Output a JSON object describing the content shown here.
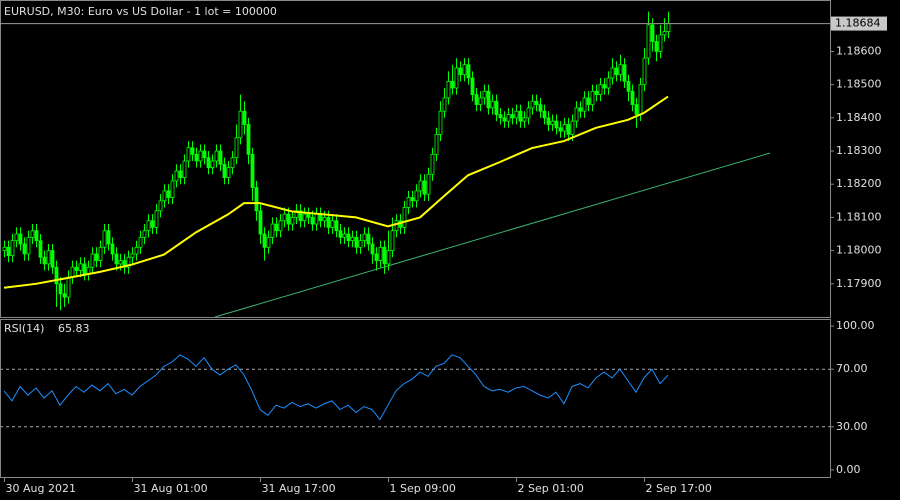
{
  "chart_data": [
    {
      "type": "candlestick",
      "title": "EURUSD, M30:  Euro vs US Dollar - 1 lot = 100000",
      "open": [
        1.18,
        1.1801,
        1.17985,
        1.1803,
        1.1805,
        1.1802,
        1.1799,
        1.1804,
        1.1806,
        1.1803,
        1.1798,
        1.1796,
        1.18,
        1.1795,
        1.179,
        1.1787,
        1.1786,
        1.1792,
        1.1795,
        1.1794,
        1.1796,
        1.1793,
        1.1795,
        1.1799,
        1.1797,
        1.1801,
        1.1806,
        1.1802,
        1.1799,
        1.1796,
        1.1797,
        1.1795,
        1.1798,
        1.1799,
        1.1801,
        1.1804,
        1.1806,
        1.1809,
        1.1807,
        1.1812,
        1.1815,
        1.1818,
        1.1816,
        1.1821,
        1.1824,
        1.1822,
        1.1827,
        1.1831,
        1.1829,
        1.1827,
        1.183,
        1.1828,
        1.1825,
        1.1827,
        1.183,
        1.1826,
        1.1822,
        1.1825,
        1.1828,
        1.1834,
        1.1842,
        1.1838,
        1.1829,
        1.1819,
        1.1812,
        1.1805,
        1.1801,
        1.1804,
        1.1808,
        1.1806,
        1.1809,
        1.1811,
        1.1808,
        1.181,
        1.1812,
        1.1809,
        1.1811,
        1.181,
        1.1808,
        1.1811,
        1.1809,
        1.181,
        1.1807,
        1.1809,
        1.1806,
        1.1804,
        1.1805,
        1.1803,
        1.1804,
        1.1801,
        1.1803,
        1.1805,
        1.1802,
        1.1799,
        1.1797,
        1.1801,
        1.1796,
        1.18,
        1.1806,
        1.1809,
        1.1807,
        1.1813,
        1.1816,
        1.1815,
        1.1818,
        1.1821,
        1.1817,
        1.1823,
        1.1829,
        1.1835,
        1.1842,
        1.1846,
        1.1851,
        1.1849,
        1.1855,
        1.1853,
        1.1856,
        1.1852,
        1.1847,
        1.1844,
        1.1846,
        1.1848,
        1.1843,
        1.1845,
        1.1841,
        1.184,
        1.1839,
        1.1841,
        1.184,
        1.1842,
        1.1839,
        1.184,
        1.1843,
        1.1845,
        1.1844,
        1.1842,
        1.184,
        1.1838,
        1.1839,
        1.1837,
        1.1836,
        1.1838,
        1.1835,
        1.1839,
        1.1843,
        1.1842,
        1.1846,
        1.1844,
        1.1848,
        1.1847,
        1.185,
        1.1849,
        1.1852,
        1.1855,
        1.1853,
        1.1856,
        1.1851,
        1.1848,
        1.1844,
        1.1841,
        1.185,
        1.1858,
        1.1868,
        1.1863,
        1.186,
        1.1865,
        1.1866
      ],
      "high": [
        1.1803,
        1.1803,
        1.1805,
        1.1807,
        1.1807,
        1.1804,
        1.1806,
        1.1808,
        1.1808,
        1.1805,
        1.18,
        1.1802,
        1.1802,
        1.1797,
        1.1792,
        1.179,
        1.1794,
        1.1797,
        1.1797,
        1.1798,
        1.1798,
        1.1797,
        1.1801,
        1.1801,
        1.1803,
        1.1808,
        1.1808,
        1.1804,
        1.1801,
        1.1799,
        1.1799,
        1.18,
        1.1801,
        1.1803,
        1.1806,
        1.1808,
        1.1811,
        1.1811,
        1.1814,
        1.1817,
        1.182,
        1.182,
        1.1823,
        1.1826,
        1.1826,
        1.1829,
        1.1833,
        1.1833,
        1.1831,
        1.1832,
        1.1832,
        1.183,
        1.1829,
        1.1832,
        1.1832,
        1.1828,
        1.1827,
        1.183,
        1.1838,
        1.1847,
        1.1845,
        1.184,
        1.1831,
        1.1821,
        1.1814,
        1.1807,
        1.1806,
        1.181,
        1.181,
        1.1811,
        1.1813,
        1.1813,
        1.1812,
        1.1814,
        1.1814,
        1.1813,
        1.1813,
        1.1812,
        1.1813,
        1.1813,
        1.1812,
        1.1812,
        1.1811,
        1.1811,
        1.1808,
        1.1807,
        1.1807,
        1.1806,
        1.1806,
        1.1805,
        1.1807,
        1.1807,
        1.1804,
        1.1801,
        1.1803,
        1.1803,
        1.1806,
        1.181,
        1.1811,
        1.1811,
        1.1815,
        1.1818,
        1.1818,
        1.182,
        1.1823,
        1.1823,
        1.1825,
        1.1831,
        1.1837,
        1.1845,
        1.1849,
        1.1854,
        1.1856,
        1.1858,
        1.1857,
        1.1858,
        1.1858,
        1.1854,
        1.1849,
        1.1848,
        1.185,
        1.185,
        1.1847,
        1.1847,
        1.1843,
        1.1842,
        1.1843,
        1.1843,
        1.1844,
        1.1844,
        1.1842,
        1.1845,
        1.1847,
        1.1847,
        1.1846,
        1.1844,
        1.1842,
        1.1841,
        1.1841,
        1.1839,
        1.184,
        1.184,
        1.1841,
        1.1845,
        1.1845,
        1.1848,
        1.1848,
        1.185,
        1.185,
        1.1852,
        1.1852,
        1.1854,
        1.1858,
        1.1857,
        1.1859,
        1.1858,
        1.1853,
        1.185,
        1.1846,
        1.1852,
        1.1861,
        1.1872,
        1.187,
        1.1865,
        1.1868,
        1.187,
        1.1872
      ],
      "low": [
        1.1798,
        1.17965,
        1.17965,
        1.1801,
        1.18,
        1.1797,
        1.1797,
        1.1802,
        1.1801,
        1.1796,
        1.1794,
        1.1794,
        1.1793,
        1.1783,
        1.1782,
        1.1783,
        1.1784,
        1.179,
        1.1792,
        1.1792,
        1.1791,
        1.1791,
        1.1793,
        1.1795,
        1.1795,
        1.1799,
        1.18,
        1.1797,
        1.1794,
        1.1794,
        1.1793,
        1.1793,
        1.1796,
        1.1797,
        1.1799,
        1.1802,
        1.1804,
        1.1805,
        1.1805,
        1.181,
        1.1813,
        1.1814,
        1.1814,
        1.1819,
        1.182,
        1.182,
        1.1825,
        1.1827,
        1.1825,
        1.1825,
        1.1826,
        1.1823,
        1.1823,
        1.1825,
        1.1824,
        1.182,
        1.182,
        1.1823,
        1.1826,
        1.1832,
        1.1835,
        1.1826,
        1.1815,
        1.1809,
        1.1802,
        1.1797,
        1.1799,
        1.1802,
        1.1804,
        1.1804,
        1.1807,
        1.1806,
        1.1806,
        1.1808,
        1.1807,
        1.1807,
        1.1808,
        1.1806,
        1.1806,
        1.1807,
        1.1807,
        1.1805,
        1.1805,
        1.1804,
        1.1802,
        1.1802,
        1.1801,
        1.1801,
        1.1799,
        1.1799,
        1.1801,
        1.18,
        1.1796,
        1.1794,
        1.1795,
        1.1793,
        1.1794,
        1.1798,
        1.1804,
        1.1805,
        1.1805,
        1.1811,
        1.1813,
        1.1813,
        1.1816,
        1.1815,
        1.1815,
        1.1821,
        1.1827,
        1.1833,
        1.184,
        1.1844,
        1.1847,
        1.1847,
        1.1851,
        1.1851,
        1.185,
        1.1845,
        1.1842,
        1.1842,
        1.1844,
        1.1841,
        1.1841,
        1.1839,
        1.1838,
        1.1837,
        1.1837,
        1.1838,
        1.1838,
        1.1837,
        1.1837,
        1.1838,
        1.1841,
        1.1842,
        1.184,
        1.1838,
        1.1836,
        1.1836,
        1.1835,
        1.1834,
        1.1834,
        1.1833,
        1.1833,
        1.1837,
        1.184,
        1.184,
        1.1842,
        1.1842,
        1.1845,
        1.1845,
        1.1847,
        1.1847,
        1.185,
        1.1851,
        1.1851,
        1.1849,
        1.1845,
        1.1842,
        1.1837,
        1.1839,
        1.1848,
        1.1856,
        1.186,
        1.1857,
        1.1858,
        1.1863,
        1.1864
      ],
      "close": [
        1.1801,
        1.17985,
        1.1803,
        1.1805,
        1.1802,
        1.1799,
        1.1804,
        1.1806,
        1.1803,
        1.1798,
        1.1796,
        1.18,
        1.1795,
        1.179,
        1.1787,
        1.1786,
        1.1792,
        1.1795,
        1.1794,
        1.1796,
        1.1793,
        1.1795,
        1.1799,
        1.1797,
        1.1801,
        1.1806,
        1.1802,
        1.1799,
        1.1796,
        1.1797,
        1.1795,
        1.1798,
        1.1799,
        1.1801,
        1.1804,
        1.1806,
        1.1809,
        1.1807,
        1.1812,
        1.1815,
        1.1818,
        1.1816,
        1.1821,
        1.1824,
        1.1822,
        1.1827,
        1.1831,
        1.1829,
        1.1827,
        1.183,
        1.1828,
        1.1825,
        1.1827,
        1.183,
        1.1826,
        1.1822,
        1.1825,
        1.1828,
        1.1834,
        1.1842,
        1.1838,
        1.1829,
        1.1819,
        1.1812,
        1.1805,
        1.1801,
        1.1804,
        1.1808,
        1.1806,
        1.1809,
        1.1811,
        1.1808,
        1.181,
        1.1812,
        1.1809,
        1.1811,
        1.181,
        1.1808,
        1.1811,
        1.1809,
        1.181,
        1.1807,
        1.1809,
        1.1806,
        1.1804,
        1.1805,
        1.1803,
        1.1804,
        1.1801,
        1.1803,
        1.1805,
        1.1802,
        1.1799,
        1.1797,
        1.1801,
        1.1796,
        1.18,
        1.1806,
        1.1809,
        1.1807,
        1.1813,
        1.1816,
        1.1815,
        1.1818,
        1.1821,
        1.1817,
        1.1823,
        1.1829,
        1.1835,
        1.1842,
        1.1846,
        1.1851,
        1.1849,
        1.1855,
        1.1853,
        1.1856,
        1.1852,
        1.1847,
        1.1844,
        1.1846,
        1.1848,
        1.1843,
        1.1845,
        1.1841,
        1.184,
        1.1839,
        1.1841,
        1.184,
        1.1842,
        1.1839,
        1.184,
        1.1843,
        1.1845,
        1.1844,
        1.1842,
        1.184,
        1.1838,
        1.1839,
        1.1837,
        1.1836,
        1.1838,
        1.1835,
        1.1839,
        1.1843,
        1.1842,
        1.1846,
        1.1844,
        1.1848,
        1.1847,
        1.185,
        1.1849,
        1.1852,
        1.1855,
        1.1853,
        1.1856,
        1.1851,
        1.1848,
        1.1844,
        1.1841,
        1.185,
        1.1858,
        1.1868,
        1.1863,
        1.186,
        1.1865,
        1.1866,
        1.18684
      ],
      "color": "#00ff00",
      "ma": {
        "color": "#ffff00",
        "x": [
          0,
          8,
          16,
          24,
          32,
          40,
          48,
          56,
          60,
          64,
          72,
          80,
          88,
          96,
          104,
          110,
          116,
          124,
          132,
          140,
          148,
          156,
          160,
          166
        ],
        "values": [
          1.17888,
          1.179,
          1.17918,
          1.17936,
          1.17958,
          1.17988,
          1.18055,
          1.18109,
          1.18143,
          1.18143,
          1.18118,
          1.18109,
          1.181,
          1.18073,
          1.181,
          1.18164,
          1.18227,
          1.18267,
          1.18309,
          1.1833,
          1.1837,
          1.18394,
          1.18415,
          1.18464
        ]
      },
      "trendline": {
        "color": "#3cb371",
        "x": [
          52.75,
          191.5
        ],
        "values": [
          1.178,
          1.18294
        ]
      },
      "xlim": [
        -1,
        206.5
      ],
      "ylim": [
        1.178,
        1.18752
      ],
      "yticks": [
        {
          "value": 1.179,
          "label": "1.17900"
        },
        {
          "value": 1.18,
          "label": "1.18000"
        },
        {
          "value": 1.181,
          "label": "1.18100"
        },
        {
          "value": 1.182,
          "label": "1.18200"
        },
        {
          "value": 1.183,
          "label": "1.18300"
        },
        {
          "value": 1.184,
          "label": "1.18400"
        },
        {
          "value": 1.185,
          "label": "1.18500"
        },
        {
          "value": 1.186,
          "label": "1.18600"
        }
      ]
    },
    {
      "type": "line",
      "title": "RSI(14)",
      "color": "#1e90ff",
      "x": [
        0,
        2,
        4,
        6,
        8,
        10,
        12,
        14,
        16,
        18,
        20,
        22,
        24,
        26,
        28,
        30,
        32,
        34,
        36,
        38,
        40,
        42,
        44,
        46,
        48,
        50,
        52,
        54,
        56,
        58,
        60,
        62,
        64,
        66,
        68,
        70,
        72,
        74,
        76,
        78,
        80,
        82,
        84,
        86,
        88,
        90,
        92,
        94,
        96,
        98,
        100,
        102,
        104,
        106,
        108,
        110,
        112,
        114,
        116,
        118,
        120,
        122,
        124,
        126,
        128,
        130,
        132,
        134,
        136,
        138,
        140,
        142,
        144,
        146,
        148,
        150,
        152,
        154,
        156,
        158,
        160,
        162,
        164,
        166
      ],
      "values": [
        55,
        48,
        58,
        52,
        57,
        50,
        55,
        45,
        52,
        58,
        54,
        59,
        55,
        60,
        53,
        56,
        52,
        58,
        62,
        66,
        72,
        75,
        80,
        77,
        72,
        78,
        70,
        66,
        70,
        73,
        66,
        55,
        42,
        38,
        45,
        43,
        47,
        44,
        46,
        43,
        46,
        48,
        42,
        45,
        40,
        44,
        42,
        35,
        45,
        55,
        60,
        63,
        68,
        65,
        72,
        74,
        80,
        78,
        72,
        66,
        58,
        55,
        56,
        54,
        57,
        58,
        55,
        52,
        50,
        54,
        46,
        58,
        60,
        57,
        64,
        68,
        64,
        70,
        62,
        54,
        64,
        70,
        60,
        65.83
      ],
      "xlim": [
        -1,
        206.5
      ],
      "ylim": [
        -4.9,
        104.2
      ],
      "yticks": [
        {
          "value": 0,
          "label": "0.00"
        },
        {
          "value": 30,
          "label": "30.00"
        },
        {
          "value": 70,
          "label": "70.00"
        },
        {
          "value": 100,
          "label": "100.00"
        }
      ],
      "xticks": [
        {
          "value": 0,
          "label": "30 Aug 2021"
        },
        {
          "value": 32,
          "label": "31 Aug 01:00"
        },
        {
          "value": 64,
          "label": "31 Aug 17:00"
        },
        {
          "value": 96,
          "label": "1 Sep 09:00"
        },
        {
          "value": 128,
          "label": "2 Sep 01:00"
        },
        {
          "value": 160,
          "label": "2 Sep 17:00"
        }
      ]
    }
  ]
}
